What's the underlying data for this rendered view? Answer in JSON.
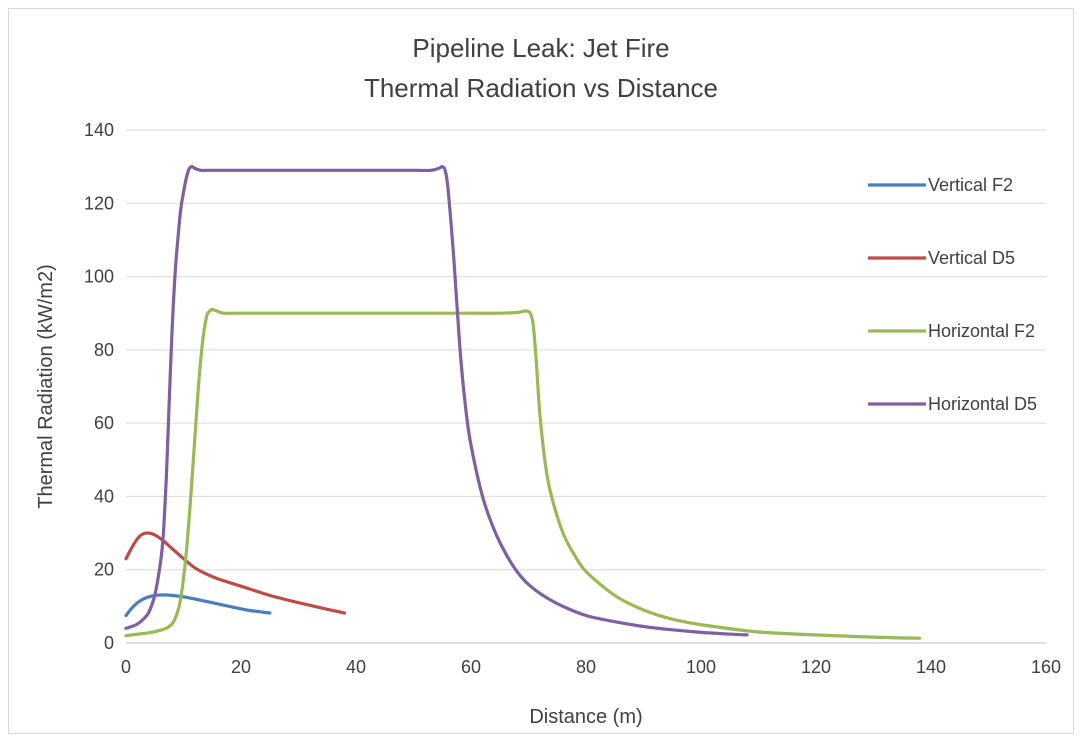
{
  "chart_data": {
    "type": "line",
    "title": "Pipeline Leak: Jet Fire",
    "subtitle": "Thermal Radiation vs Distance",
    "xlabel": "Distance (m)",
    "ylabel": "Thermal Radiation (kW/m2)",
    "xlim": [
      0,
      160
    ],
    "ylim": [
      0,
      140
    ],
    "xticks": [
      0,
      20,
      40,
      60,
      80,
      100,
      120,
      140,
      160
    ],
    "yticks": [
      0,
      20,
      40,
      60,
      80,
      100,
      120,
      140
    ],
    "grid": "horizontal",
    "legend": "right",
    "series": [
      {
        "name": "Vertical F2",
        "color": "#4a7ebb",
        "x": [
          0,
          1,
          2,
          3,
          4,
          5,
          6,
          7,
          8,
          10,
          12,
          15,
          18,
          21,
          25
        ],
        "y": [
          7.5,
          9.5,
          11,
          12,
          12.6,
          13,
          13.1,
          13.1,
          13,
          12.6,
          12,
          11,
          10,
          9,
          8.2
        ]
      },
      {
        "name": "Vertical D5",
        "color": "#be4b48",
        "x": [
          0,
          1,
          2,
          3,
          4,
          5,
          6,
          7,
          8,
          10,
          12,
          14,
          16,
          20,
          25,
          30,
          35,
          38
        ],
        "y": [
          23,
          26,
          28.5,
          29.8,
          30,
          29.5,
          28.5,
          27.2,
          25.8,
          23,
          20.5,
          18.8,
          17.5,
          15.5,
          13,
          11,
          9.2,
          8.2
        ]
      },
      {
        "name": "Horizontal F2",
        "color": "#98b954",
        "x": [
          0,
          2,
          4,
          6,
          7.5,
          8.5,
          9.5,
          10.5,
          11.5,
          12.5,
          13.3,
          14,
          14.5,
          15,
          16,
          17,
          20,
          30,
          40,
          50,
          60,
          65,
          68,
          69.5,
          70.3,
          70.8,
          71.3,
          72,
          73,
          74,
          76,
          78,
          80,
          85,
          90,
          95,
          100,
          110,
          120,
          130,
          138
        ],
        "y": [
          2,
          2.4,
          2.8,
          3.5,
          4.5,
          6.5,
          12,
          25,
          45,
          68,
          82,
          89,
          90.5,
          91,
          90.5,
          90,
          90,
          90,
          90,
          90,
          90,
          90,
          90.2,
          90.6,
          90,
          87,
          78,
          62,
          48,
          40,
          30,
          24,
          19.5,
          13,
          9,
          6.5,
          5,
          3,
          2.2,
          1.6,
          1.3
        ]
      },
      {
        "name": "Horizontal D5",
        "color": "#7d60a0",
        "x": [
          0,
          1,
          2,
          3,
          4,
          5,
          6,
          6.5,
          7,
          7.5,
          8,
          8.5,
          9,
          9.5,
          10,
          10.5,
          11,
          11.5,
          12,
          13,
          14,
          20,
          30,
          40,
          50,
          53,
          54.5,
          55,
          55.5,
          56,
          57,
          58,
          59,
          60,
          62,
          64,
          66,
          68,
          70,
          73,
          76,
          80,
          85,
          90,
          95,
          100,
          104,
          108
        ],
        "y": [
          4,
          4.5,
          5.2,
          6.5,
          8.5,
          13,
          22,
          30,
          45,
          65,
          85,
          100,
          110,
          118,
          123,
          127,
          129.5,
          130,
          129.5,
          129,
          129,
          129,
          129,
          129,
          129,
          129,
          129.6,
          130,
          129,
          124,
          105,
          82,
          65,
          54,
          40,
          31,
          24.5,
          19.5,
          16,
          12.5,
          10,
          7.5,
          5.8,
          4.5,
          3.6,
          2.9,
          2.5,
          2.2
        ]
      }
    ]
  }
}
